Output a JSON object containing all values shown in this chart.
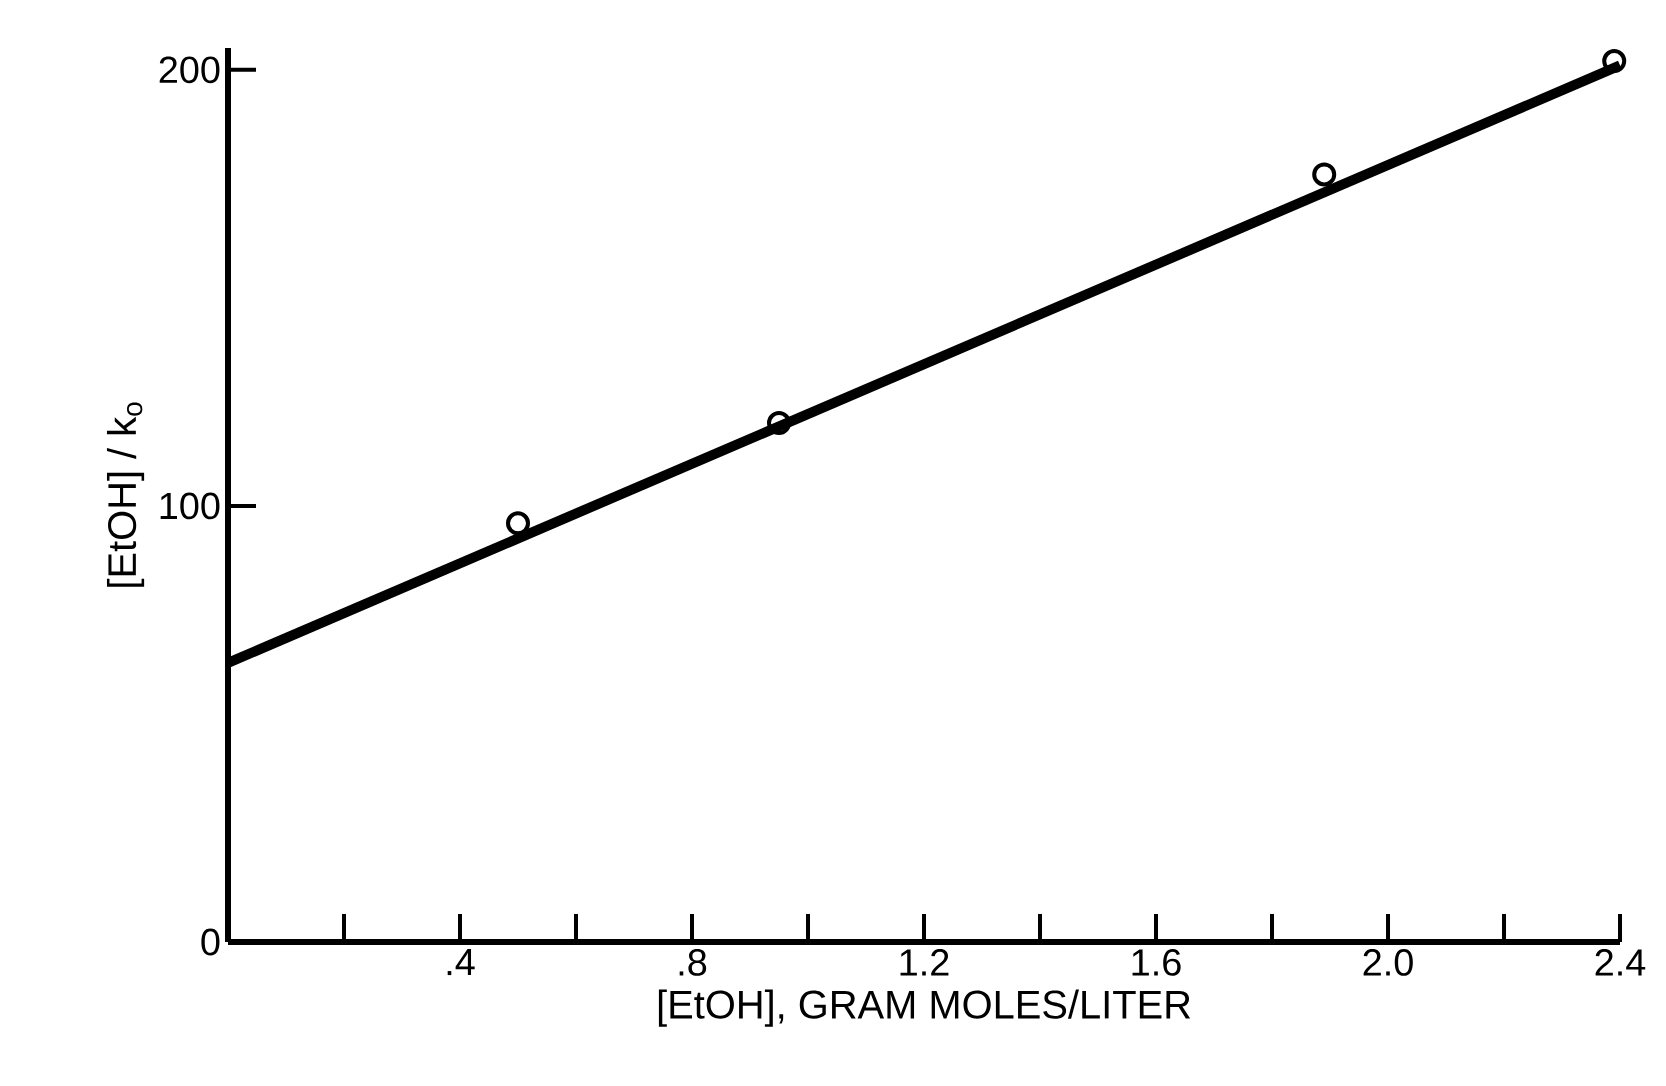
{
  "chart_data": {
    "type": "scatter",
    "xlabel": "[EtOH], GRAM MOLES/LITER",
    "ylabel": "[EtOH] / k$_{o}$",
    "xlim": [
      0,
      2.4
    ],
    "ylim": [
      0,
      205
    ],
    "xticks": [
      {
        "value": 0.2,
        "label": null
      },
      {
        "value": 0.4,
        "label": ".4"
      },
      {
        "value": 0.6,
        "label": null
      },
      {
        "value": 0.8,
        "label": ".8"
      },
      {
        "value": 1.0,
        "label": null
      },
      1.2,
      {
        "value": 1.4,
        "label": null
      },
      1.6,
      {
        "value": 1.8,
        "label": null
      },
      {
        "value": 2.0,
        "label": "2.0"
      },
      {
        "value": 2.2,
        "label": null
      },
      {
        "value": 2.4,
        "label": "2.4"
      }
    ],
    "yticks": [
      0,
      100,
      200
    ],
    "grid": false,
    "marker": "circle",
    "series": [
      {
        "color": "#000000",
        "x": [
          0.5,
          0.95,
          1.89,
          2.39
        ],
        "values": [
          96,
          119,
          176,
          202
        ]
      },
      {
        "type": "line",
        "color": "#000000",
        "marker": "none",
        "line_style": "solid",
        "x": [
          0,
          2.4
        ],
        "values": [
          64,
          201
        ]
      }
    ]
  }
}
